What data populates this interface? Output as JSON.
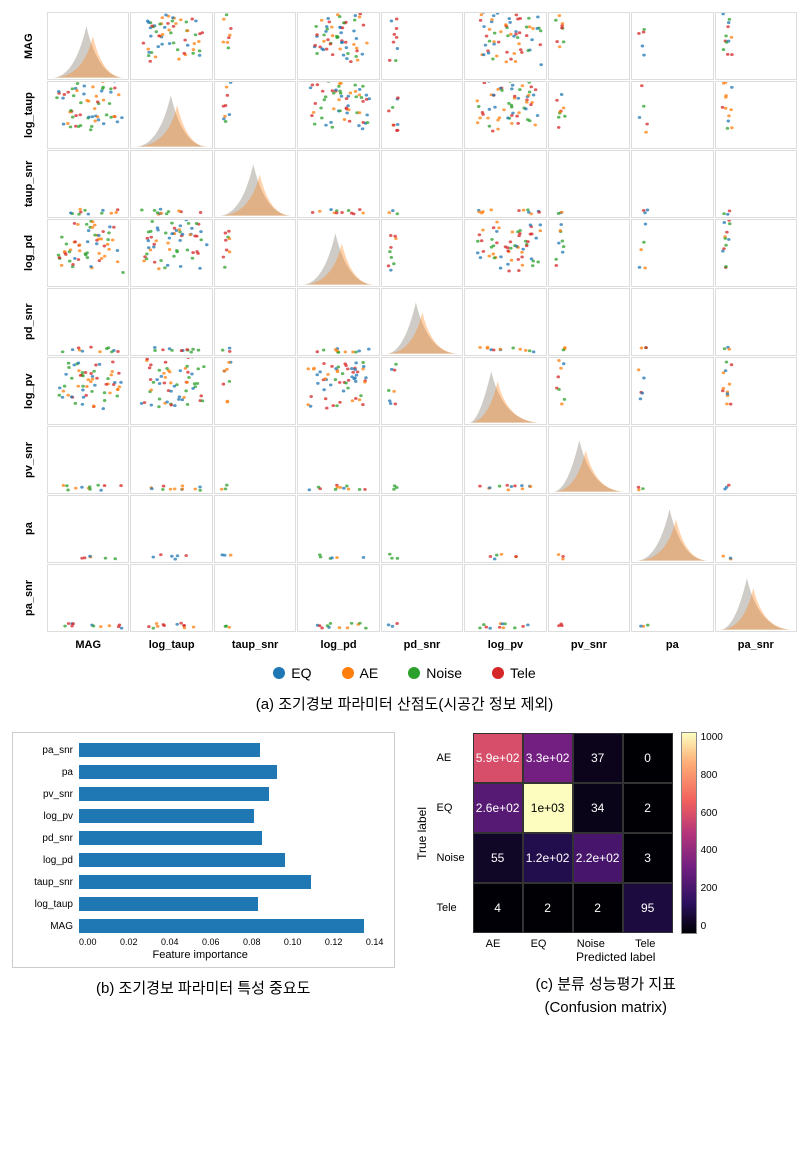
{
  "scatter_matrix": {
    "params": [
      "MAG",
      "log_taup",
      "taup_snr",
      "log_pd",
      "pd_snr",
      "log_pv",
      "pv_snr",
      "pa",
      "pa_snr"
    ],
    "classes": [
      {
        "name": "EQ",
        "color": "#1f77b4"
      },
      {
        "name": "AE",
        "color": "#ff7f0e"
      },
      {
        "name": "Noise",
        "color": "#2ca02c"
      },
      {
        "name": "Tele",
        "color": "#d62728"
      }
    ],
    "cell_border": "#dddddd",
    "diag_fill": "#c7c3bd",
    "row_density": [
      1,
      1,
      0.2,
      1,
      0.2,
      1,
      0.2,
      0.1,
      0.2
    ],
    "col_density": [
      1,
      1,
      0.15,
      1,
      0.15,
      1,
      0.15,
      0.08,
      0.2
    ]
  },
  "caption_a": "(a) 조기경보 파라미터 산점도(시공간 정보 제외)",
  "feature_importance": {
    "labels": [
      "pa_snr",
      "pa",
      "pv_snr",
      "log_pv",
      "pd_snr",
      "log_pd",
      "taup_snr",
      "log_taup",
      "MAG"
    ],
    "values": [
      0.095,
      0.104,
      0.1,
      0.092,
      0.096,
      0.108,
      0.122,
      0.094,
      0.15
    ],
    "xmax": 0.16,
    "xticks": [
      "0.00",
      "0.02",
      "0.04",
      "0.06",
      "0.08",
      "0.10",
      "0.12",
      "0.14"
    ],
    "bar_color": "#1f77b4",
    "xlabel": "Feature importance"
  },
  "caption_b": "(b) 조기경보 파라미터 특성 중요도",
  "confusion_matrix": {
    "row_labels": [
      "AE",
      "EQ",
      "Noise",
      "Tele"
    ],
    "col_labels": [
      "AE",
      "EQ",
      "Noise",
      "Tele"
    ],
    "ylabel": "True label",
    "xlabel": "Predicted label",
    "cells": [
      [
        {
          "t": "5.9e+02",
          "v": 590
        },
        {
          "t": "3.3e+02",
          "v": 330
        },
        {
          "t": "37",
          "v": 37
        },
        {
          "t": "0",
          "v": 0
        }
      ],
      [
        {
          "t": "2.6e+02",
          "v": 260
        },
        {
          "t": "1e+03",
          "v": 1000
        },
        {
          "t": "34",
          "v": 34
        },
        {
          "t": "2",
          "v": 2
        }
      ],
      [
        {
          "t": "55",
          "v": 55
        },
        {
          "t": "1.2e+02",
          "v": 120
        },
        {
          "t": "2.2e+02",
          "v": 220
        },
        {
          "t": "3",
          "v": 3
        }
      ],
      [
        {
          "t": "4",
          "v": 4
        },
        {
          "t": "2",
          "v": 2
        },
        {
          "t": "2",
          "v": 2
        },
        {
          "t": "95",
          "v": 95
        }
      ]
    ],
    "vmax": 1000,
    "colorbar_ticks": [
      "0",
      "200",
      "400",
      "600",
      "800",
      "1000"
    ],
    "cmap_stops": [
      {
        "p": 0,
        "c": "#000004"
      },
      {
        "p": 0.15,
        "c": "#2c115f"
      },
      {
        "p": 0.33,
        "c": "#721f81"
      },
      {
        "p": 0.5,
        "c": "#b5367a"
      },
      {
        "p": 0.66,
        "c": "#f1605d"
      },
      {
        "p": 0.85,
        "c": "#feae77"
      },
      {
        "p": 1,
        "c": "#fcfdbf"
      }
    ]
  },
  "caption_c_line1": "(c) 분류 성능평가 지표",
  "caption_c_line2": "(Confusion matrix)"
}
